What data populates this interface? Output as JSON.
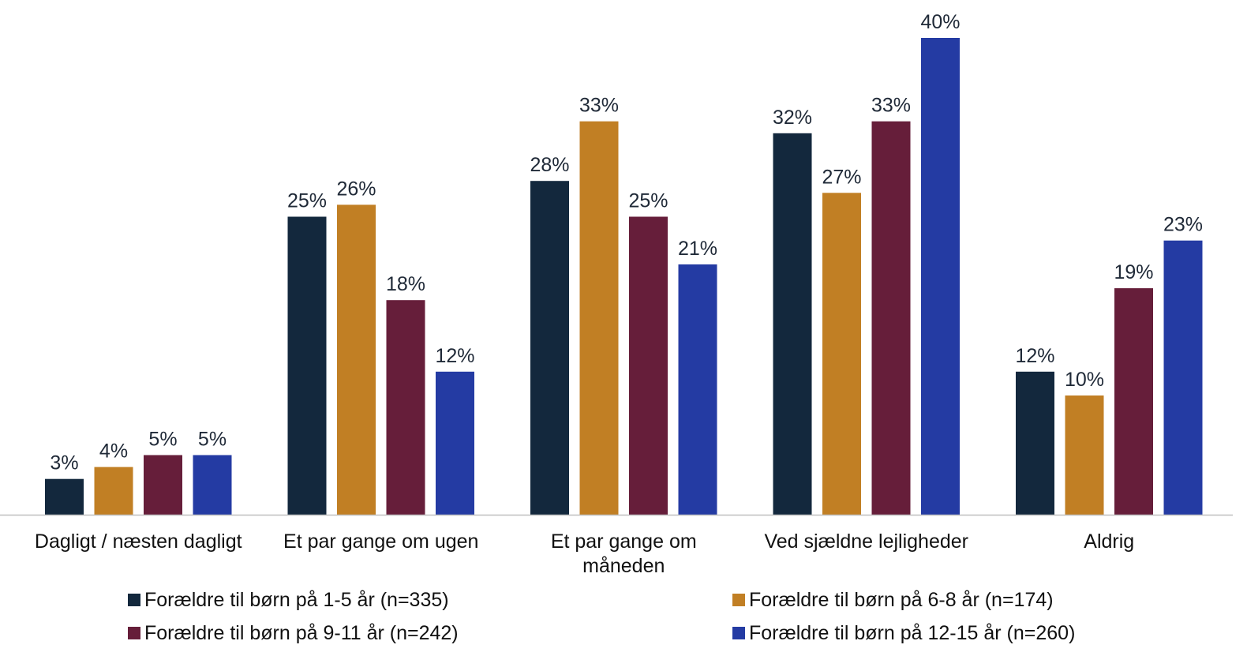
{
  "chart_data": {
    "type": "bar",
    "categories": [
      [
        "Dagligt / næsten dagligt"
      ],
      [
        "Et par gange om ugen"
      ],
      [
        "Et par gange om",
        "måneden"
      ],
      [
        "Ved sjældne lejligheder"
      ],
      [
        "Aldrig"
      ]
    ],
    "series": [
      {
        "name": "Forældre til børn på 1-5 år (n=335)",
        "color": "#13283d",
        "values": [
          3,
          25,
          28,
          32,
          12
        ],
        "labels": [
          "3%",
          "25%",
          "28%",
          "32%",
          "12%"
        ]
      },
      {
        "name": "Forældre til børn på 6-8 år (n=174)",
        "color": "#c17f24",
        "values": [
          4,
          26,
          33,
          27,
          10
        ],
        "labels": [
          "4%",
          "26%",
          "33%",
          "27%",
          "10%"
        ]
      },
      {
        "name": "Forældre til børn på 9-11 år (n=242)",
        "color": "#661e3a",
        "values": [
          5,
          18,
          25,
          33,
          19
        ],
        "labels": [
          "5%",
          "18%",
          "25%",
          "33%",
          "19%"
        ]
      },
      {
        "name": "Forældre til børn på 12-15 år (n=260)",
        "color": "#243ba3",
        "values": [
          5,
          12,
          21,
          40,
          23
        ],
        "labels": [
          "5%",
          "12%",
          "21%",
          "40%",
          "23%"
        ]
      }
    ],
    "value_suffix": "%",
    "ylim": [
      0,
      40
    ],
    "grid": false,
    "legend": "bottom",
    "axis_color": "#bfbfbf"
  }
}
